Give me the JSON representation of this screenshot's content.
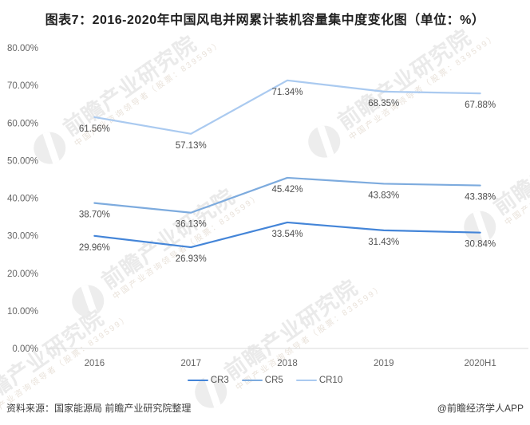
{
  "title": "图表7：2016-2020年中国风电并网累计装机容量集中度变化图（单位：%）",
  "chart_data": {
    "type": "line",
    "categories": [
      "2016",
      "2017",
      "2018",
      "2019",
      "2020H1"
    ],
    "series": [
      {
        "name": "CR3",
        "color": "#4485d8",
        "values": [
          29.96,
          26.93,
          33.54,
          31.43,
          30.84
        ]
      },
      {
        "name": "CR5",
        "color": "#7dabde",
        "values": [
          38.7,
          36.13,
          45.42,
          43.83,
          43.38
        ]
      },
      {
        "name": "CR10",
        "color": "#aacaf0",
        "values": [
          61.56,
          57.13,
          71.34,
          68.35,
          67.88
        ]
      }
    ],
    "xlabel": "",
    "ylabel": "",
    "ylim": [
      0,
      80
    ],
    "ytick_step": 10,
    "ytick_labels": [
      "0.00%",
      "10.00%",
      "20.00%",
      "30.00%",
      "40.00%",
      "50.00%",
      "60.00%",
      "70.00%",
      "80.00%"
    ],
    "grid": false,
    "legend_position": "bottom",
    "data_label_format": "0.00%"
  },
  "watermark": {
    "main": "前瞻产业研究院",
    "sub": "中国产业咨询领导者（股票：839599）"
  },
  "footer": {
    "source": "资料来源：国家能源局  前瞻产业研究院整理",
    "brand": "@前瞻经济学人APP"
  },
  "colors": {
    "axis_line": "#d9d9d9",
    "tick_text": "#666666",
    "data_label_text": "#4d4d4d",
    "title_text": "#1f1f1f"
  }
}
